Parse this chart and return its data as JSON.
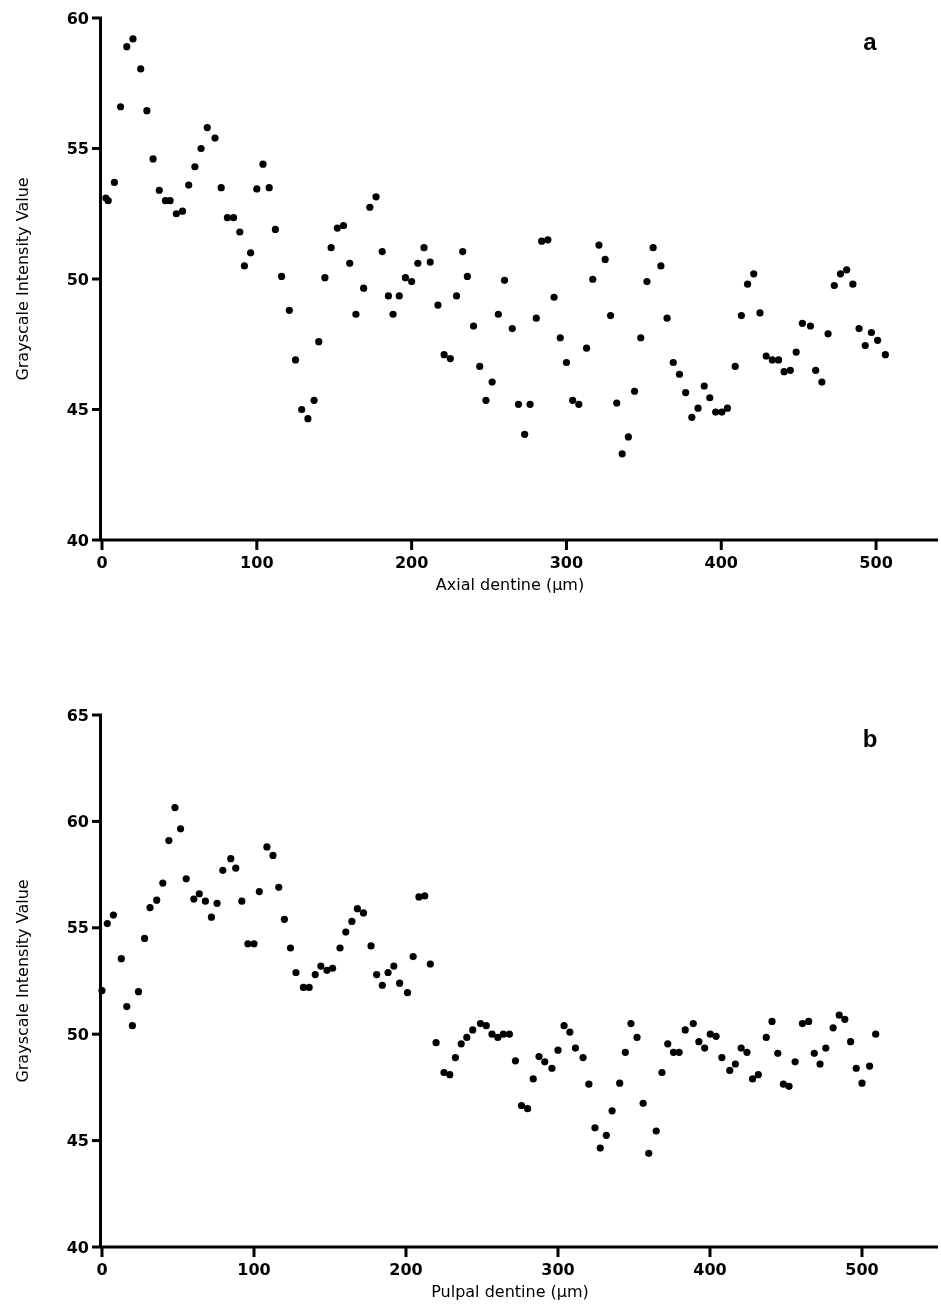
{
  "chart_data": [
    {
      "type": "scatter",
      "xlabel": "Axial dentine (µm)",
      "ylabel": "Grayscale Intensity Value",
      "annotations": [
        "a"
      ],
      "color": "#000000",
      "marker": "circle",
      "xlim": [
        0,
        540
      ],
      "ylim": [
        40,
        60
      ],
      "xticks": [
        0,
        100,
        200,
        300,
        400,
        500
      ],
      "yticks": [
        40,
        45,
        50,
        55,
        60
      ],
      "x": [
        2.5,
        4,
        8,
        12,
        16,
        20,
        25,
        29,
        33,
        37,
        41,
        44,
        48,
        52,
        56,
        60,
        64,
        68,
        73,
        77,
        81,
        85,
        89,
        92,
        96,
        100,
        104,
        108,
        112,
        116,
        121,
        125,
        129,
        133,
        137,
        140,
        144,
        148,
        152,
        156,
        160,
        164,
        169,
        173,
        177,
        181,
        185,
        188,
        192,
        196,
        200,
        204,
        208,
        212,
        217,
        221,
        225,
        229,
        233,
        236,
        240,
        244,
        248,
        252,
        256,
        260,
        265,
        269,
        273,
        276.5,
        280.5,
        284,
        288,
        292,
        296,
        300,
        304,
        308,
        313,
        317,
        321,
        325,
        328.5,
        332.5,
        336,
        340,
        344,
        348,
        352,
        356,
        361,
        365,
        369,
        373,
        377,
        381,
        385,
        389,
        392.6,
        396.4,
        400.4,
        404,
        409,
        413,
        417,
        421,
        425,
        429,
        433,
        437,
        440.6,
        444.6,
        448.4,
        452.4,
        457.6,
        461,
        465,
        469,
        473,
        477,
        481,
        485,
        489,
        493,
        497,
        501,
        506
      ],
      "values": [
        53.1,
        53.0,
        53.7,
        56.6,
        58.9,
        59.2,
        58.05,
        56.45,
        54.6,
        53.4,
        53.0,
        53.0,
        52.5,
        52.6,
        53.6,
        54.3,
        55.0,
        55.8,
        55.4,
        53.5,
        52.35,
        52.35,
        51.8,
        50.5,
        51.0,
        53.45,
        54.4,
        53.5,
        51.9,
        50.1,
        48.8,
        46.9,
        45.0,
        44.65,
        45.35,
        47.6,
        50.05,
        51.2,
        51.95,
        52.05,
        50.6,
        48.65,
        49.65,
        52.75,
        53.15,
        51.05,
        49.35,
        48.65,
        49.35,
        50.05,
        49.9,
        50.6,
        51.2,
        50.65,
        49.0,
        47.1,
        46.95,
        49.35,
        51.05,
        50.1,
        48.2,
        46.65,
        45.35,
        46.05,
        48.65,
        49.95,
        48.1,
        45.2,
        44.05,
        45.2,
        48.5,
        51.45,
        51.5,
        49.3,
        47.75,
        46.8,
        45.35,
        45.2,
        47.35,
        49.99,
        51.3,
        50.75,
        48.6,
        45.25,
        43.3,
        43.95,
        45.7,
        47.75,
        49.9,
        51.2,
        50.5,
        48.5,
        46.8,
        46.35,
        45.65,
        44.7,
        45.05,
        45.9,
        45.45,
        44.9,
        44.9,
        45.05,
        46.65,
        48.6,
        49.8,
        50.2,
        48.7,
        47.05,
        46.9,
        46.9,
        46.45,
        46.5,
        47.2,
        48.3,
        48.2,
        46.5,
        46.05,
        47.9,
        49.75,
        50.2,
        50.35,
        49.8,
        48.1,
        47.45,
        47.95,
        47.65,
        47.1
      ]
    },
    {
      "type": "scatter",
      "xlabel": "Pulpal dentine (µm)",
      "ylabel": "Grayscale Intensity Value",
      "annotations": [
        "b"
      ],
      "color": "#000000",
      "marker": "circle",
      "xlim": [
        0,
        550
      ],
      "ylim": [
        40,
        65
      ],
      "xticks": [
        0,
        100,
        200,
        300,
        400,
        500
      ],
      "yticks": [
        40,
        45,
        50,
        55,
        60,
        65
      ],
      "x": [
        0,
        3.5,
        7.5,
        12.7,
        16.3,
        20,
        24,
        28,
        31.6,
        36,
        40,
        44,
        48,
        51.7,
        55.4,
        60.4,
        64,
        68,
        72,
        75.7,
        79.5,
        84.7,
        88,
        92,
        96,
        100,
        103.5,
        108.5,
        112.5,
        116.3,
        120,
        124,
        127.6,
        132.5,
        136.3,
        140.3,
        144,
        148,
        151.7,
        156.6,
        160.4,
        164.4,
        168,
        172,
        177,
        180.7,
        184.4,
        188.2,
        192,
        195.8,
        201,
        204.7,
        208.5,
        212.3,
        216,
        219.8,
        225,
        228.8,
        232.5,
        236.3,
        240,
        243.9,
        249,
        252.8,
        256.6,
        260.4,
        264,
        268,
        272,
        276,
        280,
        283.7,
        287.5,
        291.3,
        296,
        300,
        304,
        307.8,
        311.5,
        316.5,
        320.3,
        324.3,
        327.8,
        331.8,
        335.6,
        340.6,
        344.3,
        348,
        352,
        356,
        359.7,
        364.6,
        368.4,
        372.2,
        376,
        379.7,
        383.7,
        389,
        392.7,
        396.5,
        400.2,
        404,
        407.8,
        413,
        416.7,
        420.5,
        424.3,
        428,
        431.8,
        437,
        440.8,
        444.6,
        448.3,
        452,
        456,
        460.8,
        464.9,
        468.6,
        472.4,
        476.2,
        481,
        485,
        488.7,
        492.5,
        496.2,
        500,
        505,
        509
      ],
      "values": [
        52.05,
        55.2,
        55.6,
        53.55,
        51.3,
        50.4,
        52.0,
        54.5,
        55.95,
        56.3,
        57.1,
        59.1,
        60.65,
        59.65,
        57.3,
        56.35,
        56.6,
        56.25,
        55.5,
        56.15,
        57.7,
        58.25,
        57.8,
        56.25,
        54.25,
        54.25,
        56.7,
        58.8,
        58.4,
        56.9,
        55.4,
        54.05,
        52.9,
        52.2,
        52.2,
        52.8,
        53.2,
        53.0,
        53.1,
        54.05,
        54.8,
        55.3,
        55.9,
        55.7,
        54.15,
        52.8,
        52.3,
        52.9,
        53.2,
        52.4,
        51.95,
        53.65,
        56.45,
        56.5,
        53.3,
        49.6,
        48.2,
        48.1,
        48.9,
        49.55,
        49.85,
        50.2,
        50.5,
        50.4,
        50.0,
        49.85,
        50.0,
        50.0,
        48.75,
        46.65,
        46.5,
        47.9,
        48.95,
        48.7,
        48.4,
        49.25,
        50.4,
        50.1,
        49.35,
        48.9,
        47.65,
        45.6,
        44.65,
        45.25,
        46.4,
        47.7,
        49.15,
        50.5,
        49.85,
        46.75,
        44.4,
        45.45,
        48.2,
        49.55,
        49.15,
        49.15,
        50.2,
        50.5,
        49.65,
        49.35,
        50.0,
        49.9,
        48.9,
        48.3,
        48.6,
        49.35,
        49.15,
        47.9,
        48.1,
        49.85,
        50.6,
        49.1,
        47.65,
        47.55,
        48.7,
        50.5,
        50.6,
        49.1,
        48.6,
        49.35,
        50.3,
        50.9,
        50.7,
        49.65,
        48.4,
        47.7,
        48.5,
        50.0
      ]
    }
  ]
}
